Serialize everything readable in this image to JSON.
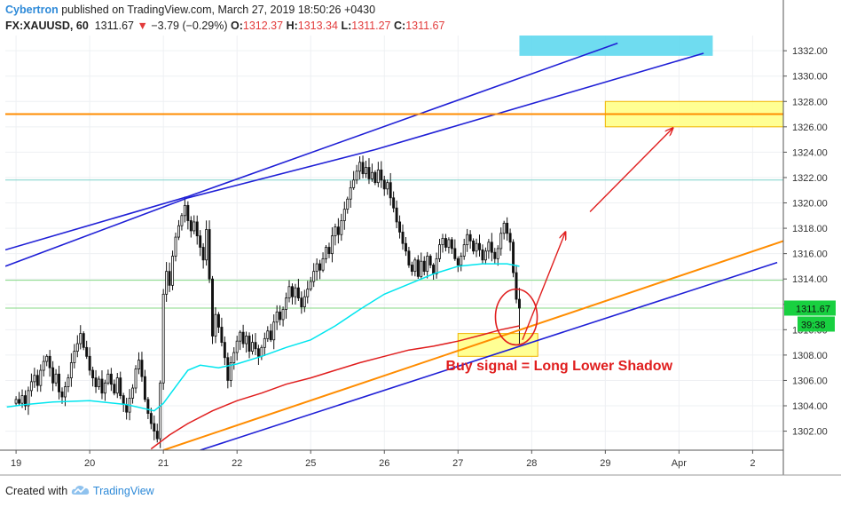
{
  "header": {
    "author": "Cybertron",
    "published_text": "published on TradingView.com, March 27, 2019 18:50:26 +0430",
    "symbol": "FX:XAUUSD, 60",
    "last": "1311.67",
    "change": "−3.79 (−0.29%)",
    "open_label": "O:",
    "open": "1312.37",
    "high_label": "H:",
    "high": "1313.34",
    "low_label": "L:",
    "low": "1311.27",
    "close_label": "C:",
    "close": "1311.67"
  },
  "footer": {
    "created_with": "Created with",
    "brand": "TradingView",
    "logo_icon": "tradingview-cloud-icon"
  },
  "chart_data": {
    "type": "candlestick",
    "title": "",
    "xlabel": "",
    "ylabel": "",
    "ylim": [
      1300.5,
      1333.2
    ],
    "y_ticks": [
      "1302.00",
      "1304.00",
      "1306.00",
      "1308.00",
      "1310.00",
      "1312.00",
      "1314.00",
      "1316.00",
      "1318.00",
      "1320.00",
      "1322.00",
      "1324.00",
      "1326.00",
      "1328.00",
      "1330.00",
      "1332.00"
    ],
    "x_ticks": [
      {
        "label": "19",
        "x": 0
      },
      {
        "label": "20",
        "x": 24
      },
      {
        "label": "21",
        "x": 48
      },
      {
        "label": "22",
        "x": 72
      },
      {
        "label": "25",
        "x": 96
      },
      {
        "label": "26",
        "x": 120
      },
      {
        "label": "27",
        "x": 144
      },
      {
        "label": "28",
        "x": 168
      },
      {
        "label": "29",
        "x": 192
      },
      {
        "label": "Apr",
        "x": 216
      },
      {
        "label": "2",
        "x": 240
      }
    ],
    "x_unit": "hours from 19 Mar 00:00 (weekend omitted)",
    "xlim": [
      -3.5,
      250
    ],
    "last_price_label": "1311.67",
    "countdown_label": "39:38",
    "candles_close": [
      1304.5,
      1304.2,
      1304.8,
      1304.0,
      1305.2,
      1305.9,
      1306.4,
      1305.6,
      1306.8,
      1307.5,
      1307.9,
      1307.0,
      1305.8,
      1306.5,
      1305.1,
      1304.7,
      1305.5,
      1306.2,
      1307.4,
      1308.3,
      1308.9,
      1309.7,
      1308.6,
      1307.9,
      1306.8,
      1306.2,
      1305.5,
      1306.1,
      1305.0,
      1305.8,
      1306.5,
      1305.7,
      1305.0,
      1306.2,
      1304.8,
      1304.1,
      1303.5,
      1304.6,
      1305.4,
      1306.9,
      1307.6,
      1306.3,
      1304.5,
      1303.4,
      1302.6,
      1302.0,
      1301.4,
      1305.8,
      1312.8,
      1314.6,
      1313.5,
      1315.8,
      1317.3,
      1318.2,
      1319.0,
      1319.8,
      1318.6,
      1317.8,
      1318.5,
      1317.4,
      1316.5,
      1315.5,
      1317.9,
      1314.0,
      1309.5,
      1311.2,
      1310.2,
      1309.0,
      1307.8,
      1306.0,
      1307.4,
      1308.2,
      1309.1,
      1309.8,
      1308.9,
      1309.5,
      1308.3,
      1309.0,
      1308.5,
      1307.9,
      1308.6,
      1309.3,
      1309.9,
      1309.2,
      1310.6,
      1311.4,
      1310.8,
      1311.6,
      1312.5,
      1313.4,
      1312.6,
      1313.3,
      1312.5,
      1311.8,
      1312.6,
      1313.2,
      1313.8,
      1314.6,
      1315.2,
      1314.7,
      1315.6,
      1316.5,
      1316.0,
      1317.4,
      1318.1,
      1317.5,
      1318.6,
      1319.5,
      1320.3,
      1321.2,
      1321.8,
      1322.5,
      1323.2,
      1322.3,
      1322.8,
      1321.9,
      1322.4,
      1321.6,
      1322.6,
      1321.8,
      1321.1,
      1321.6,
      1320.4,
      1319.6,
      1318.5,
      1317.7,
      1316.8,
      1316.2,
      1315.1,
      1314.6,
      1315.5,
      1314.2,
      1315.4,
      1314.6,
      1315.8,
      1315.1,
      1314.4,
      1315.6,
      1316.7,
      1317.2,
      1316.5,
      1317.1,
      1316.4,
      1315.6,
      1315.1,
      1315.8,
      1316.7,
      1317.5,
      1317.0,
      1316.2,
      1316.8,
      1316.3,
      1315.5,
      1316.2,
      1316.9,
      1316.1,
      1315.6,
      1316.4,
      1317.6,
      1318.4,
      1317.6,
      1316.9,
      1314.5,
      1312.4,
      1311.7
    ],
    "moving_averages": [
      {
        "name": "",
        "color": "#00e5ee",
        "points": [
          [
            -3,
            1303.9
          ],
          [
            3,
            1304.1
          ],
          [
            12,
            1304.3
          ],
          [
            24,
            1304.4
          ],
          [
            36,
            1304.1
          ],
          [
            45,
            1303.6
          ],
          [
            48,
            1304.2
          ],
          [
            52,
            1305.5
          ],
          [
            56,
            1306.8
          ],
          [
            60,
            1307.2
          ],
          [
            66,
            1307.0
          ],
          [
            72,
            1307.3
          ],
          [
            80,
            1307.9
          ],
          [
            88,
            1308.6
          ],
          [
            96,
            1309.2
          ],
          [
            104,
            1310.3
          ],
          [
            112,
            1311.6
          ],
          [
            120,
            1312.8
          ],
          [
            128,
            1313.6
          ],
          [
            136,
            1314.4
          ],
          [
            144,
            1315.0
          ],
          [
            152,
            1315.2
          ],
          [
            160,
            1315.2
          ],
          [
            164,
            1315.0
          ]
        ]
      },
      {
        "name": "",
        "color": "#e01e1e",
        "points": [
          [
            44,
            1300.6
          ],
          [
            50,
            1301.7
          ],
          [
            56,
            1302.6
          ],
          [
            64,
            1303.6
          ],
          [
            72,
            1304.4
          ],
          [
            80,
            1305.0
          ],
          [
            88,
            1305.7
          ],
          [
            96,
            1306.2
          ],
          [
            104,
            1306.8
          ],
          [
            112,
            1307.4
          ],
          [
            120,
            1307.9
          ],
          [
            128,
            1308.4
          ],
          [
            136,
            1308.7
          ],
          [
            144,
            1309.1
          ],
          [
            152,
            1309.6
          ],
          [
            158,
            1310.0
          ],
          [
            164,
            1310.3
          ]
        ]
      }
    ],
    "trendlines": [
      {
        "color": "#1f1fd6",
        "points": [
          [
            -3.5,
            1316.3
          ],
          [
            56,
            1320.5
          ],
          [
            196,
            1332.6
          ]
        ]
      },
      {
        "color": "#1f1fd6",
        "points": [
          [
            -3.5,
            1315.0
          ],
          [
            56,
            1320.4
          ],
          [
            117,
            1324.2
          ],
          [
            224,
            1331.8
          ]
        ]
      },
      {
        "color": "#1f1fd6",
        "points": [
          [
            60,
            1300.5
          ],
          [
            248,
            1315.3
          ]
        ]
      },
      {
        "color": "#ff8c00",
        "points": [
          [
            48,
            1300.5
          ],
          [
            250,
            1317.0
          ]
        ]
      },
      {
        "color": "#ff8c00",
        "points": [
          [
            -3.5,
            1327.0
          ],
          [
            250,
            1327.0
          ]
        ]
      }
    ],
    "zones": [
      {
        "color": "#5fd8ee",
        "x": [
          164,
          227
        ],
        "y": [
          1331.6,
          1333.2
        ]
      },
      {
        "color": "#ffff88",
        "x": [
          192,
          250
        ],
        "y": [
          1326.0,
          1328.0
        ]
      },
      {
        "color": "#ffff88",
        "x": [
          144,
          170
        ],
        "y": [
          1307.9,
          1309.7
        ]
      }
    ],
    "horizontal_levels": [
      {
        "y": 1321.8,
        "color": "#7fd3cc"
      },
      {
        "y": 1313.9,
        "color": "#86d886"
      },
      {
        "y": 1311.7,
        "color": "#86d886"
      }
    ],
    "arrows": [
      {
        "from": [
          165,
          1309.2
        ],
        "to": [
          179,
          1317.7
        ]
      },
      {
        "from": [
          187,
          1319.3
        ],
        "to": [
          214,
          1325.9
        ]
      }
    ],
    "ellipse": {
      "center": [
        163,
        1311.0
      ],
      "rx": 6.8,
      "ry": 2.2
    },
    "annotation": {
      "text": "Buy signal =  Long Lower Shadow",
      "x": 140,
      "y": 1306.8,
      "color": "#e01e1e"
    }
  }
}
